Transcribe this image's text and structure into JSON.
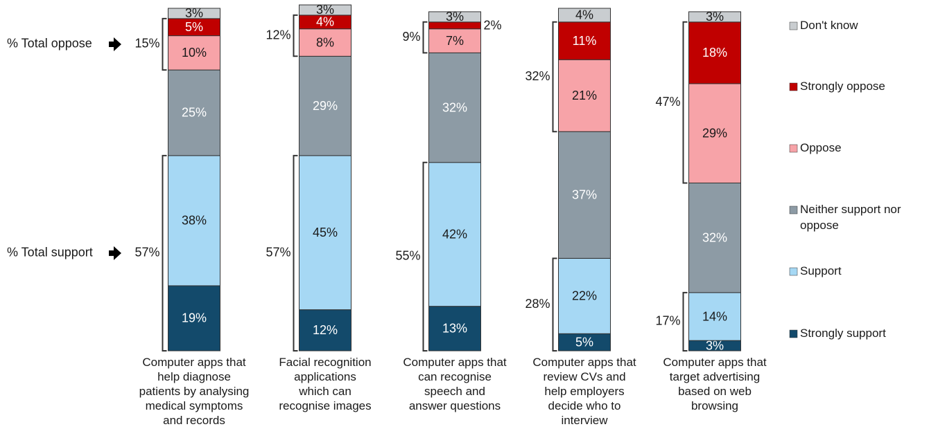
{
  "chart_data": {
    "type": "stacked_bar",
    "categories": [
      "Computer apps that\nhelp diagnose\npatients by analysing\nmedical symptoms\nand records",
      "Facial recognition\napplications\nwhich can\nrecognise images",
      "Computer apps that\ncan recognise\nspeech and\nanswer questions",
      "Computer apps that\nreview CVs and\nhelp employers\ndecide who to\ninterview",
      "Computer apps that\ntarget advertising\nbased on web\nbrowsing"
    ],
    "ylim": [
      0,
      100
    ],
    "series": [
      {
        "name": "Strongly support",
        "color": "#134a6b",
        "values": [
          19,
          12,
          13,
          5,
          3
        ],
        "value_labels": [
          "19%",
          "12%",
          "13%",
          "5%",
          "3%"
        ]
      },
      {
        "name": "Support",
        "color": "#a6d8f4",
        "values": [
          38,
          45,
          42,
          22,
          14
        ],
        "value_labels": [
          "38%",
          "45%",
          "42%",
          "22%",
          "14%"
        ]
      },
      {
        "name": "Neither support nor\noppose",
        "color": "#8d9ba5",
        "values": [
          25,
          29,
          32,
          37,
          32
        ],
        "value_labels": [
          "25%",
          "29%",
          "32%",
          "37%",
          "32%"
        ]
      },
      {
        "name": "Oppose",
        "color": "#f7a3a8",
        "values": [
          10,
          8,
          7,
          21,
          29
        ],
        "value_labels": [
          "10%",
          "8%",
          "7%",
          "21%",
          "29%"
        ]
      },
      {
        "name": "Strongly oppose",
        "color": "#c00000",
        "values": [
          5,
          4,
          2,
          11,
          18
        ],
        "value_labels": [
          "5%",
          "4%",
          "2%",
          "11%",
          "18%"
        ]
      },
      {
        "name": "Don't know",
        "color": "#c9cdd0",
        "values": [
          3,
          3,
          3,
          4,
          3
        ],
        "value_labels": [
          "3%",
          "3%",
          "3%",
          "4%",
          "3%"
        ]
      }
    ],
    "totals": [
      {
        "name": "% Total support",
        "series": [
          0,
          1
        ],
        "values": [
          57,
          57,
          55,
          28,
          17
        ],
        "value_labels": [
          "57%",
          "57%",
          "55%",
          "28%",
          "17%"
        ]
      },
      {
        "name": "% Total oppose",
        "series": [
          3,
          4
        ],
        "values": [
          15,
          12,
          9,
          32,
          47
        ],
        "value_labels": [
          "15%",
          "12%",
          "9%",
          "32%",
          "47%"
        ]
      }
    ]
  }
}
